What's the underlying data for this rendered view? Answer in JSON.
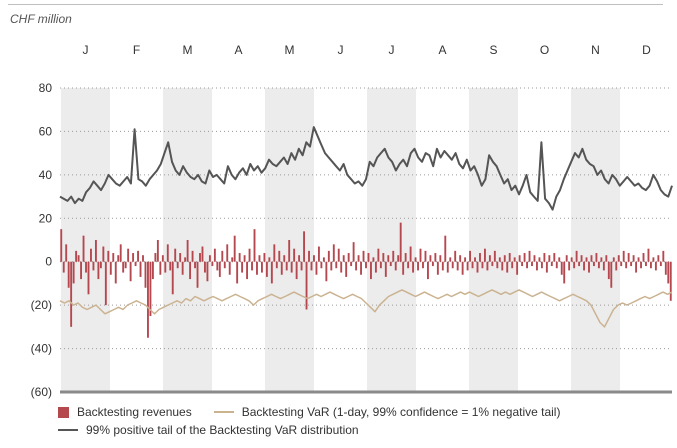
{
  "unit_label": "CHF million",
  "colors": {
    "revenue": "#b5474e",
    "var": "#cbb391",
    "tail": "#555555",
    "shade": "#ececec"
  },
  "chart_data": {
    "type": "line",
    "months": [
      "J",
      "F",
      "M",
      "A",
      "M",
      "J",
      "J",
      "A",
      "S",
      "O",
      "N",
      "D"
    ],
    "y_ticks": [
      80,
      60,
      40,
      20,
      0,
      -20,
      -40,
      -60
    ],
    "y_tick_labels": [
      "80",
      "60",
      "40",
      "20",
      "0",
      "(20)",
      "(40)",
      "(60)"
    ],
    "ylim": [
      -60,
      80
    ],
    "grid": "dotted horizontal",
    "legend_position": "bottom",
    "series": [
      {
        "name": "Backtesting revenues",
        "kind": "bar",
        "values": [
          15,
          -5,
          8,
          -12,
          -30,
          -10,
          5,
          3,
          -8,
          12,
          -5,
          -15,
          6,
          -4,
          10,
          -8,
          -3,
          7,
          -20,
          5,
          -6,
          4,
          -10,
          3,
          8,
          -5,
          -3,
          6,
          -9,
          4,
          -2,
          5,
          -7,
          3,
          -12,
          -35,
          -25,
          -8,
          4,
          10,
          -6,
          3,
          -5,
          8,
          -4,
          -15,
          6,
          -3,
          4,
          -6,
          2,
          10,
          -8,
          5,
          -3,
          -12,
          4,
          7,
          -5,
          -9,
          3,
          -2,
          6,
          -4,
          -7,
          5,
          -3,
          8,
          -6,
          2,
          12,
          -10,
          4,
          -5,
          3,
          -8,
          6,
          -4,
          15,
          -6,
          3,
          -5,
          4,
          -7,
          2,
          -10,
          8,
          -3,
          5,
          -6,
          3,
          -4,
          10,
          -5,
          6,
          -8,
          3,
          -4,
          14,
          -22,
          5,
          -4,
          3,
          -6,
          7,
          -3,
          2,
          -9,
          5,
          -4,
          8,
          -3,
          6,
          -5,
          3,
          -7,
          4,
          -2,
          9,
          -4,
          3,
          -6,
          5,
          -3,
          4,
          -8,
          2,
          -5,
          6,
          -3,
          4,
          -7,
          3,
          -2,
          5,
          -4,
          3,
          18,
          -6,
          4,
          -3,
          7,
          -5,
          2,
          -4,
          6,
          -3,
          5,
          -8,
          3,
          -2,
          4,
          -6,
          3,
          -4,
          12,
          -5,
          2,
          -3,
          5,
          -4,
          3,
          -6,
          2,
          -4,
          5,
          -3,
          2,
          -5,
          4,
          -3,
          6,
          -4,
          3,
          -2,
          5,
          -3,
          2,
          -4,
          3,
          -5,
          4,
          -3,
          2,
          -6,
          3,
          -2,
          4,
          -3,
          5,
          -2,
          3,
          -4,
          2,
          -3,
          4,
          -5,
          3,
          -2,
          4,
          -3,
          2,
          -6,
          -10,
          3,
          -4,
          2,
          -3,
          5,
          -2,
          3,
          -4,
          2,
          -5,
          3,
          -2,
          4,
          -3,
          2,
          -4,
          3,
          -8,
          -12,
          2,
          -4,
          3,
          -2,
          5,
          -3,
          4,
          -2,
          3,
          -5,
          2,
          -3,
          4,
          -2,
          6,
          -3,
          2,
          -4,
          3,
          -2,
          5,
          -6,
          -10,
          -18
        ]
      },
      {
        "name": "Backtesting VaR (1-day, 99% confidence = 1% negative tail)",
        "kind": "line",
        "values": [
          -18,
          -19,
          -18,
          -20,
          -19,
          -21,
          -22,
          -21,
          -20,
          -22,
          -24,
          -23,
          -22,
          -21,
          -22,
          -20,
          -19,
          -18,
          -19,
          -20,
          -22,
          -24,
          -22,
          -21,
          -20,
          -19,
          -18,
          -19,
          -17,
          -18,
          -16,
          -17,
          -18,
          -17,
          -16,
          -17,
          -18,
          -17,
          -16,
          -15,
          -16,
          -17,
          -18,
          -20,
          -18,
          -17,
          -16,
          -15,
          -16,
          -17,
          -16,
          -15,
          -14,
          -15,
          -16,
          -17,
          -16,
          -15,
          -16,
          -15,
          -14,
          -15,
          -16,
          -17,
          -16,
          -15,
          -16,
          -17,
          -19,
          -21,
          -23,
          -20,
          -18,
          -16,
          -15,
          -14,
          -13,
          -14,
          -15,
          -16,
          -15,
          -14,
          -15,
          -16,
          -17,
          -16,
          -15,
          -16,
          -15,
          -14,
          -15,
          -14,
          -15,
          -16,
          -15,
          -14,
          -13,
          -14,
          -15,
          -14,
          -15,
          -14,
          -13,
          -14,
          -15,
          -16,
          -15,
          -14,
          -15,
          -16,
          -17,
          -18,
          -17,
          -16,
          -15,
          -16,
          -17,
          -18,
          -20,
          -24,
          -28,
          -30,
          -26,
          -22,
          -20,
          -19,
          -20,
          -19,
          -18,
          -17,
          -16,
          -17,
          -16,
          -15,
          -14,
          -15,
          -14
        ]
      },
      {
        "name": "99% positive tail of the Backtesting VaR distribution",
        "kind": "line",
        "values": [
          30,
          29,
          28,
          30,
          27,
          29,
          28,
          32,
          34,
          37,
          35,
          33,
          36,
          40,
          38,
          36,
          35,
          37,
          39,
          36,
          61,
          38,
          37,
          35,
          38,
          40,
          42,
          45,
          50,
          55,
          46,
          42,
          40,
          44,
          41,
          39,
          38,
          40,
          37,
          36,
          42,
          39,
          40,
          38,
          36,
          44,
          40,
          38,
          41,
          43,
          40,
          45,
          42,
          44,
          41,
          43,
          47,
          45,
          44,
          46,
          48,
          45,
          50,
          47,
          52,
          49,
          55,
          53,
          62,
          58,
          54,
          50,
          48,
          46,
          44,
          42,
          45,
          40,
          38,
          36,
          37,
          35,
          38,
          46,
          44,
          48,
          50,
          52,
          48,
          46,
          42,
          45,
          47,
          44,
          50,
          52,
          48,
          46,
          50,
          49,
          44,
          52,
          48,
          51,
          49,
          47,
          50,
          45,
          43,
          47,
          42,
          44,
          40,
          35,
          38,
          49,
          46,
          44,
          40,
          36,
          38,
          33,
          35,
          31,
          35,
          40,
          32,
          30,
          28,
          55,
          29,
          27,
          24,
          30,
          33,
          38,
          42,
          46,
          50,
          48,
          52,
          47,
          45,
          44,
          40,
          42,
          38,
          36,
          40,
          38,
          35,
          37,
          39,
          37,
          35,
          36,
          34,
          33,
          35,
          40,
          37,
          33,
          31,
          30,
          35
        ]
      }
    ]
  },
  "legend": {
    "revenues": "Backtesting revenues",
    "var": "Backtesting VaR (1-day, 99% confidence = 1% negative tail)",
    "tail": "99% positive tail of the Backtesting VaR distribution"
  }
}
